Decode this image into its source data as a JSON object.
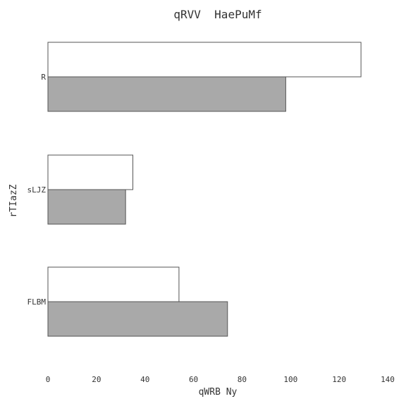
{
  "chart_data": {
    "type": "bar",
    "orientation": "horizontal",
    "title": "qRVV  HaePuMf",
    "xlabel": "qWRB Ny",
    "ylabel": "rTIazZ",
    "categories": [
      "R",
      "sLJZ",
      "FLBM"
    ],
    "series": [
      {
        "values": [
          129,
          35,
          54
        ],
        "color": "#ffffff"
      },
      {
        "values": [
          98,
          32,
          74
        ],
        "color": "#a9a9a9"
      }
    ],
    "xlim": [
      0,
      140
    ],
    "xticks": [
      0,
      20,
      40,
      60,
      80,
      100,
      120,
      140
    ],
    "grid": false,
    "legend": "none"
  }
}
